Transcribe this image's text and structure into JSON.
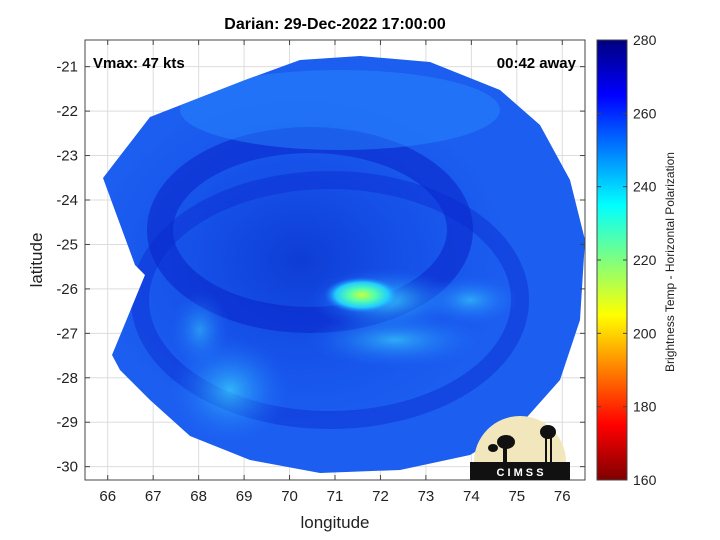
{
  "chart_data": {
    "type": "heatmap",
    "title": "Darian: 29-Dec-2022 17:00:00",
    "xlabel": "longitude",
    "ylabel": "latitude",
    "xlim": [
      65.5,
      76.5
    ],
    "ylim": [
      -30.3,
      -20.4
    ],
    "xticks": [
      66,
      67,
      68,
      69,
      70,
      71,
      72,
      73,
      74,
      75,
      76
    ],
    "yticks": [
      -21,
      -22,
      -23,
      -24,
      -25,
      -26,
      -27,
      -28,
      -29,
      -30
    ],
    "grid": true,
    "annotations": {
      "top_left": "Vmax: 47 kts",
      "top_right": "00:42 away"
    },
    "colorbar": {
      "label": "Brightness Temp - Horizontal Polarization",
      "range": [
        160,
        280
      ],
      "ticks": [
        280,
        260,
        240,
        220,
        200,
        180,
        160
      ],
      "colors": [
        "#7f0000",
        "#ff0000",
        "#ff7f00",
        "#ffff00",
        "#7fff7f",
        "#00ffff",
        "#007fff",
        "#0000ff",
        "#00007f"
      ]
    },
    "storm_center": {
      "lon": 71.2,
      "lat": -26.1
    },
    "coldest_region_value": 205,
    "background_value": 262,
    "logo_text": "C I M S S"
  }
}
